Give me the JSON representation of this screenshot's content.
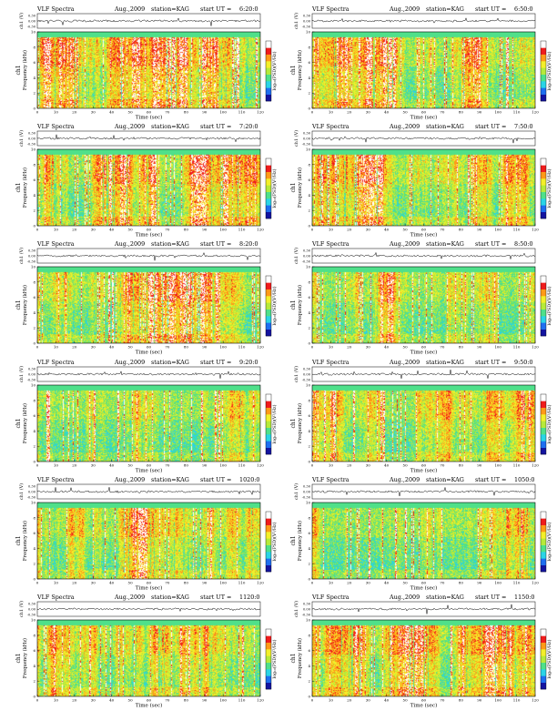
{
  "page": {
    "header": {
      "label": "VLF Spectra",
      "date": "Aug.,2009",
      "station": "station=KAG",
      "start_prefix": "start  UT ="
    },
    "labels": {
      "ch_axis": "ch1 (V)",
      "freq_axis": "Frequency  (kHz)",
      "freq_axis_prefix": "ch1",
      "time_axis": "Time  (sec)",
      "colorbar": "log₁₀(PSD)(V²/Hz)",
      "ch_ticks": [
        "0.30",
        "0.00",
        "-0.30"
      ]
    },
    "panel_times": [
      "6:20:0",
      "6:50:0",
      "7:20:0",
      "7:50:0",
      "8:20:0",
      "8:50:0",
      "9:20:0",
      "9:50:0",
      "1020:0",
      "1050:0",
      "1120:0",
      "1150:0"
    ]
  },
  "chart_data": {
    "type": "heatmap",
    "panels": 12,
    "layout": "6 rows x 2 columns",
    "x": {
      "label": "Time  (sec)",
      "range": [
        0,
        120
      ],
      "ticks": [
        0,
        10,
        20,
        30,
        40,
        50,
        60,
        70,
        80,
        90,
        100,
        110,
        120
      ]
    },
    "y": {
      "label": "Frequency  (kHz)",
      "range": [
        0,
        10
      ],
      "ticks": [
        0,
        2,
        4,
        6,
        8,
        10
      ]
    },
    "waveform": {
      "label": "ch1 (V)",
      "range": [
        -0.3,
        0.3
      ],
      "ticks": [
        0.3,
        0.0,
        -0.3
      ]
    },
    "colorbar": {
      "label": "log₁₀(PSD)(V²/Hz)",
      "colors": [
        "#1414a0",
        "#1f6ff0",
        "#2ad4e6",
        "#4fe08a",
        "#b6ea3a",
        "#f3ef2a",
        "#ff9a18",
        "#f01c1c",
        "#ffffff"
      ]
    }
  }
}
